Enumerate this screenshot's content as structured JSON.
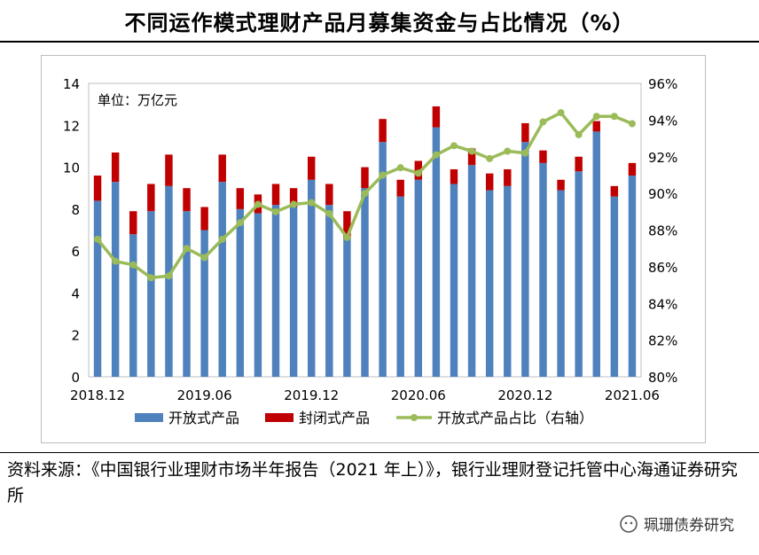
{
  "title": "不同运作模式理财产品月募集资金与占比情况（%）",
  "source": "资料来源：《中国银行业理财市场半年报告（2021 年上）》，银行业理财登记托管中心海通证券研究所",
  "watermark": "珮珊债券研究",
  "chart_data": {
    "type": "bar",
    "stacked": true,
    "unit_label": "单位：万亿元",
    "categories": [
      "2018.12",
      "2019.01",
      "2019.02",
      "2019.03",
      "2019.04",
      "2019.05",
      "2019.06",
      "2019.07",
      "2019.08",
      "2019.09",
      "2019.10",
      "2019.11",
      "2019.12",
      "2020.01",
      "2020.02",
      "2020.03",
      "2020.04",
      "2020.05",
      "2020.06",
      "2020.07",
      "2020.08",
      "2020.09",
      "2020.10",
      "2020.11",
      "2020.12",
      "2021.01",
      "2021.02",
      "2021.03",
      "2021.04",
      "2021.05",
      "2021.06"
    ],
    "x_tick_labels": [
      "2018.12",
      "2019.06",
      "2019.12",
      "2020.06",
      "2020.12",
      "2021.06"
    ],
    "series": [
      {
        "name": "开放式产品",
        "type": "bar",
        "color": "#4f81bd",
        "axis": "left",
        "values": [
          8.4,
          9.3,
          6.8,
          7.9,
          9.1,
          7.9,
          7.0,
          9.3,
          8.0,
          7.8,
          8.2,
          8.1,
          9.4,
          8.2,
          6.6,
          9.0,
          11.2,
          8.6,
          9.4,
          11.9,
          9.2,
          10.1,
          8.9,
          9.1,
          11.2,
          10.2,
          8.9,
          9.8,
          11.7,
          8.6,
          9.6
        ]
      },
      {
        "name": "封闭式产品",
        "type": "bar",
        "color": "#c00000",
        "axis": "left",
        "values": [
          1.2,
          1.4,
          1.1,
          1.3,
          1.5,
          1.1,
          1.1,
          1.3,
          1.0,
          0.9,
          1.0,
          0.9,
          1.1,
          1.0,
          1.3,
          1.0,
          1.1,
          0.8,
          0.9,
          1.0,
          0.7,
          0.8,
          0.8,
          0.8,
          0.9,
          0.6,
          0.5,
          0.7,
          0.5,
          0.5,
          0.6
        ]
      },
      {
        "name": "开放式产品占比（右轴）",
        "type": "line",
        "color": "#9bbb59",
        "axis": "right",
        "values": [
          87.5,
          86.3,
          86.1,
          85.4,
          85.5,
          87.0,
          86.5,
          87.5,
          88.4,
          89.4,
          89.0,
          89.4,
          89.5,
          88.9,
          87.6,
          90.0,
          91.0,
          91.4,
          91.1,
          92.1,
          92.6,
          92.3,
          91.9,
          92.3,
          92.2,
          93.9,
          94.4,
          93.2,
          94.2,
          94.2,
          93.8
        ]
      }
    ],
    "ylim_left": [
      0,
      14
    ],
    "yticks_left": [
      0,
      2,
      4,
      6,
      8,
      10,
      12,
      14
    ],
    "ylim_right": [
      80,
      96
    ],
    "yticks_right": [
      "80%",
      "82%",
      "84%",
      "86%",
      "88%",
      "90%",
      "92%",
      "94%",
      "96%"
    ],
    "legend_position": "bottom"
  }
}
